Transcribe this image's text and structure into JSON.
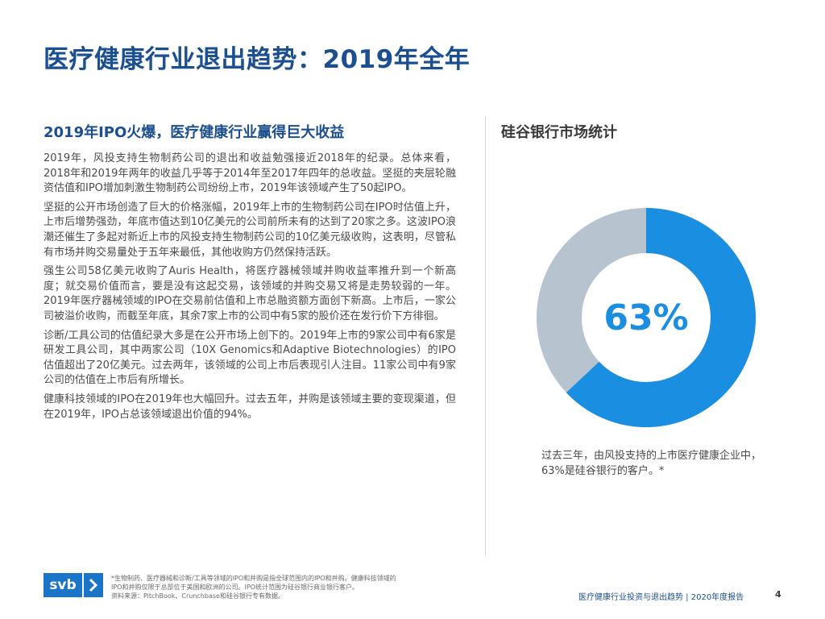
{
  "page": {
    "title": "医疗健康行业退出趋势：2019年全年"
  },
  "left": {
    "heading": "2019年IPO火爆，医疗健康行业赢得巨大收益",
    "paragraphs": [
      "2019年，风投支持生物制药公司的退出和收益勉强接近2018年的纪录。总体来看，2018年和2019年两年的收益几乎等于2014年至2017年四年的总收益。坚挺的夹层轮融资估值和IPO增加刺激生物制药公司纷纷上市，2019年该领域产生了50起IPO。",
      "坚挺的公开市场创造了巨大的价格涨幅，2019年上市的生物制药公司在IPO时估值上升，上市后增势强劲，年底市值达到10亿美元的公司前所未有的达到了20家之多。这波IPO浪潮还催生了多起对新近上市的风投支持生物制药公司的10亿美元级收购，这表明，尽管私有市场并购交易量处于五年来最低，其他收购方仍然保持活跃。",
      "强生公司58亿美元收购了Auris Health，将医疗器械领域并购收益率推升到一个新高度；就交易价值而言，要是没有这起交易，该领域的并购交易又将是走势较弱的一年。2019年医疗器械领域的IPO在交易前估值和上市总融资额方面创下新高。上市后，一家公司被溢价收购，而截至年底，其余7家上市的公司中有5家的股价还在发行价下方徘徊。",
      "诊断/工具公司的估值纪录大多是在公开市场上创下的。2019年上市的9家公司中有6家是研发工具公司，其中两家公司（10X Genomics和Adaptive Biotechnologies）的IPO估值超出了20亿美元。过去两年，该领域的公司上市后表现引人注目。11家公司中有9家公司的估值在上市后有所增长。",
      "健康科技领域的IPO在2019年也大幅回升。过去五年，并购是该领域主要的变现渠道，但在2019年，IPO占总该领域退出价值的94%。"
    ]
  },
  "right": {
    "heading": "硅谷银行市场统计",
    "donut": {
      "label": "63%",
      "value_percent": 63,
      "colors": {
        "value": "#1a8ee0",
        "rest": "#b7c3cf"
      }
    },
    "caption": "过去三年，由风投支持的上市医疗健康企业中，63%是硅谷银行的客户。*"
  },
  "footer": {
    "logo_text": "svb",
    "logo_icon": "chevron-right-icon",
    "footnote_lines": [
      "*生物制药、医疗器械和诊断/工具等领域的IPO和并购是指全球范围内的IPO和并购。健康科技领域的",
      "IPO和并购仅限于总部位于美国和欧洲的公司。IPO统计范围为硅谷银行商业银行客户。",
      "资料来源：PitchBook、Crunchbase和硅谷银行专有数据。"
    ],
    "report_title": "医疗健康行业投资与退出趋势 | 2020年度报告",
    "page_number": "4"
  }
}
